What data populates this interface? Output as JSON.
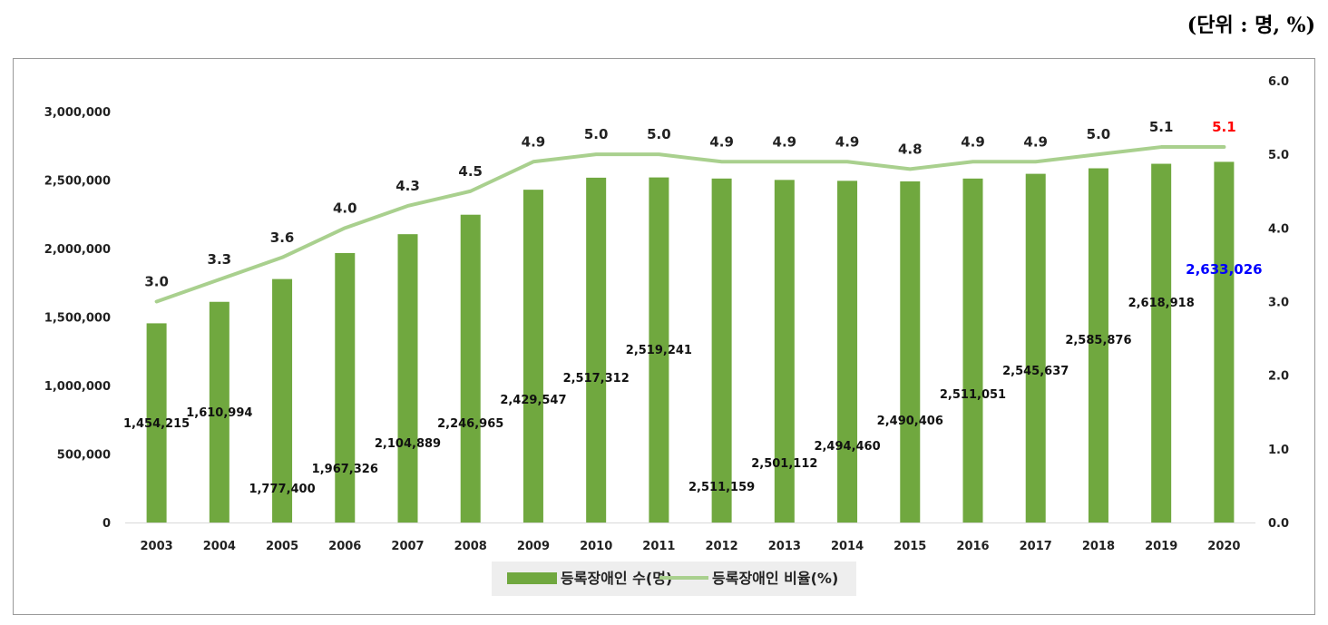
{
  "unit_note": "(단위 : 명, %)",
  "colors": {
    "bar": "#70a83f",
    "line": "#a9d08e",
    "highlight_ratio": "#ff0000",
    "highlight_count": "#0000ff"
  },
  "chart_data": {
    "type": "bar",
    "categories": [
      "2003",
      "2004",
      "2005",
      "2006",
      "2007",
      "2008",
      "2009",
      "2010",
      "2011",
      "2012",
      "2013",
      "2014",
      "2015",
      "2016",
      "2017",
      "2018",
      "2019",
      "2020"
    ],
    "series": [
      {
        "name": "등록장애인 수(명)",
        "type": "bar",
        "axis": "left",
        "values": [
          1454215,
          1610994,
          1777400,
          1967326,
          2104889,
          2246965,
          2429547,
          2517312,
          2519241,
          2511159,
          2501112,
          2494460,
          2490406,
          2511051,
          2545637,
          2585876,
          2618918,
          2633026
        ],
        "labels": [
          "1,454,215",
          "1,610,994",
          "1,777,400",
          "1,967,326",
          "2,104,889",
          "2,246,965",
          "2,429,547",
          "2,517,312",
          "2,519,241",
          "2,511,159",
          "2,501,112",
          "2,494,460",
          "2,490,406",
          "2,511,051",
          "2,545,637",
          "2,585,876",
          "2,618,918",
          "2,633,026"
        ]
      },
      {
        "name": "등록장애인 비율(%)",
        "type": "line",
        "axis": "right",
        "values": [
          3.0,
          3.3,
          3.6,
          4.0,
          4.3,
          4.5,
          4.9,
          5.0,
          5.0,
          4.9,
          4.9,
          4.9,
          4.8,
          4.9,
          4.9,
          5.0,
          5.1,
          5.1
        ],
        "labels": [
          "3.0",
          "3.3",
          "3.6",
          "4.0",
          "4.3",
          "4.5",
          "4.9",
          "5.0",
          "5.0",
          "4.9",
          "4.9",
          "4.9",
          "4.8",
          "4.9",
          "4.9",
          "5.0",
          "5.1",
          "5.1"
        ]
      }
    ],
    "y_left": {
      "ylim": [
        0,
        3000000
      ],
      "ticks": [
        0,
        500000,
        1000000,
        1500000,
        2000000,
        2500000,
        3000000
      ],
      "tick_labels": [
        "0",
        "500,000",
        "1,000,000",
        "1,500,000",
        "2,000,000",
        "2,500,000",
        "3,000,000"
      ]
    },
    "y_right": {
      "ylim": [
        0.0,
        6.0
      ],
      "ticks": [
        0,
        1,
        2,
        3,
        4,
        5,
        6
      ],
      "tick_labels": [
        "0.0",
        "1.0",
        "2.0",
        "3.0",
        "4.0",
        "5.0",
        "6.0"
      ]
    },
    "legend": {
      "placement": "bottom",
      "items": [
        "등록장애인 수(명)",
        "등록장애인 비율(%)"
      ]
    },
    "grid": false
  }
}
